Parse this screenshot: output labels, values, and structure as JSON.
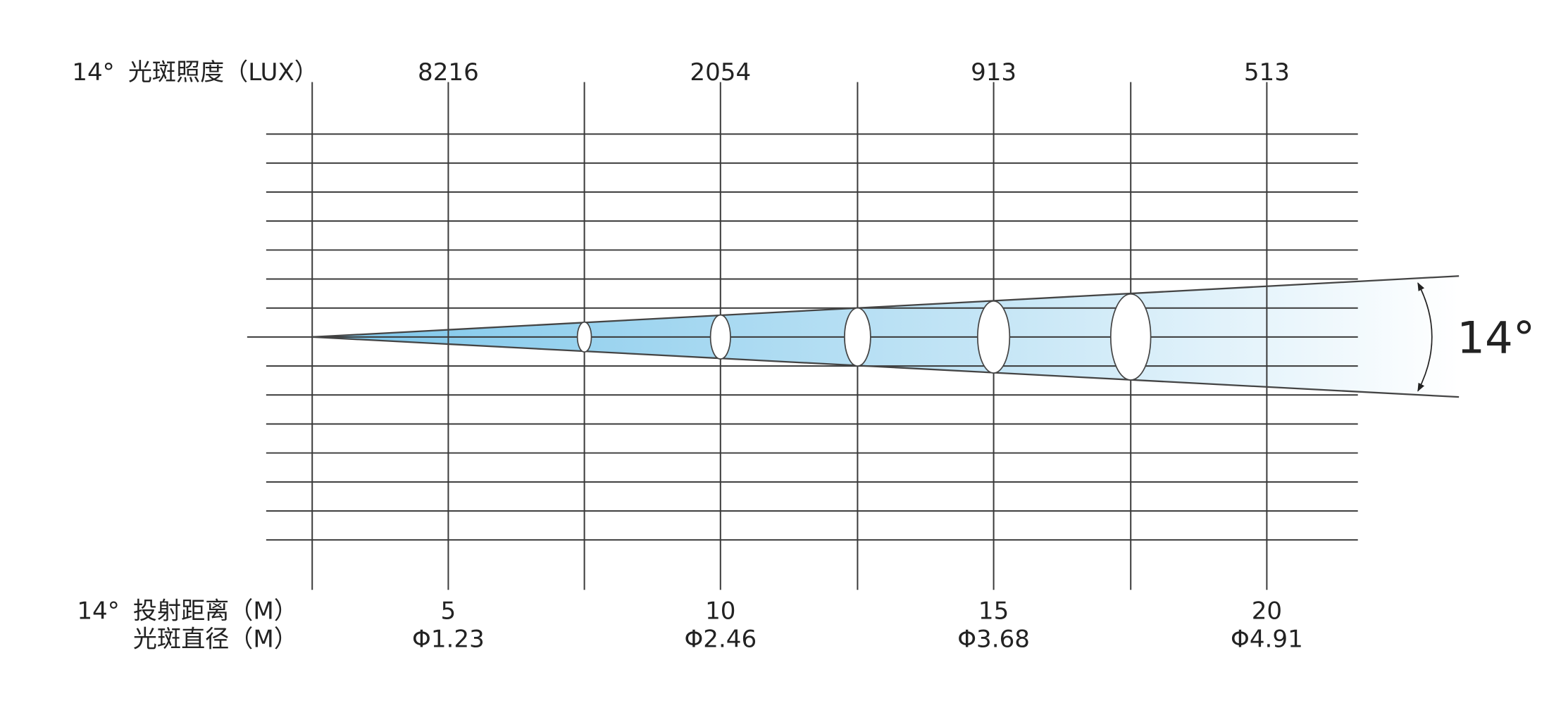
{
  "illuminance_label": {
    "angle": "14°",
    "label": "光斑照度（LUX）"
  },
  "distance_label": {
    "angle": "14°",
    "label": "投射距离（M）"
  },
  "diameter_label": "光斑直径（M）",
  "beam_angle": "14°",
  "columns": [
    {
      "lux": "8216",
      "distance": "5",
      "diameter": "Φ1.23"
    },
    {
      "lux": "2054",
      "distance": "10",
      "diameter": "Φ2.46"
    },
    {
      "lux": "913",
      "distance": "15",
      "diameter": "Φ3.68"
    },
    {
      "lux": "513",
      "distance": "20",
      "diameter": "Φ4.91"
    }
  ]
}
